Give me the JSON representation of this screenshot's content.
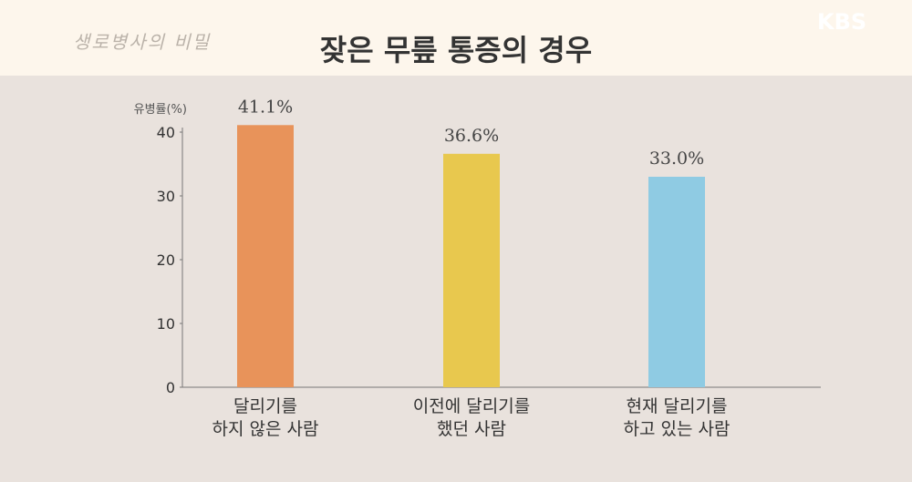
{
  "header": {
    "logo_text": "생로병사의 비밀",
    "broadcaster": "KBS",
    "title": "잦은 무릎 통증의 경우"
  },
  "chart_data": {
    "type": "bar",
    "title": "잦은 무릎 통증의 경우",
    "ylabel": "유병률(%)",
    "ylim": [
      0,
      40
    ],
    "yticks": [
      0,
      10,
      20,
      30,
      40
    ],
    "categories": [
      [
        "달리기를",
        "하지 않은 사람"
      ],
      [
        "이전에 달리기를",
        "했던 사람"
      ],
      [
        "현재 달리기를",
        "하고 있는 사람"
      ]
    ],
    "values": [
      41.1,
      36.6,
      33.0
    ],
    "data_labels": [
      "41.1%",
      "36.6%",
      "33.0%"
    ],
    "colors": [
      "#e8935a",
      "#e8c84e",
      "#8fcbe3"
    ],
    "grid": false
  }
}
